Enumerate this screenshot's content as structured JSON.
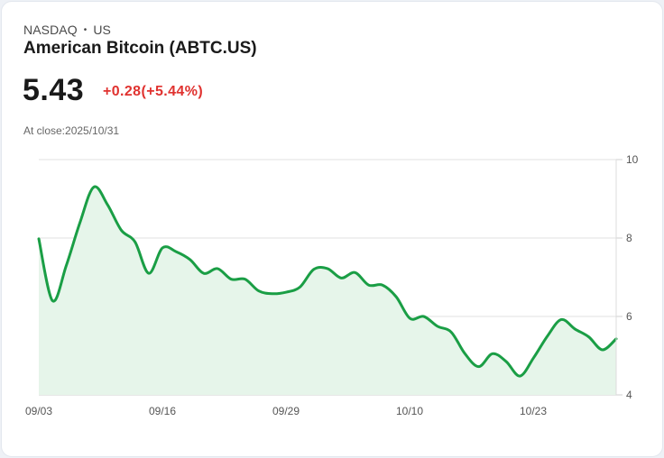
{
  "header": {
    "exchange": "NASDAQ",
    "separator": "•",
    "market": "US",
    "title": "American Bitcoin (ABTC.US)",
    "price": "5.43",
    "change": "+0.28(+5.44%)",
    "close_label": "At close:2025/10/31"
  },
  "colors": {
    "line": "#1a9e45",
    "fill": "#e6f5ea",
    "change": "#e0322f",
    "grid": "#e2e2e2"
  },
  "chart_data": {
    "type": "area",
    "title": "American Bitcoin (ABTC.US)",
    "xlabel": "",
    "ylabel": "",
    "ylim": [
      4,
      10
    ],
    "y_ticks": [
      "10",
      "8",
      "6",
      "4"
    ],
    "x_ticks": [
      "09/03",
      "09/16",
      "09/29",
      "10/10",
      "10/23"
    ],
    "grid": true,
    "y_axis_position": "right",
    "series": [
      {
        "name": "ABTC.US",
        "points": [
          {
            "x": "09/03",
            "y": 7.98
          },
          {
            "x": "09/04",
            "y": 6.4
          },
          {
            "x": "09/05",
            "y": 7.3
          },
          {
            "x": "09/08",
            "y": 8.4
          },
          {
            "x": "09/09",
            "y": 9.3
          },
          {
            "x": "09/10",
            "y": 8.85
          },
          {
            "x": "09/11",
            "y": 8.2
          },
          {
            "x": "09/12",
            "y": 7.9
          },
          {
            "x": "09/15",
            "y": 7.1
          },
          {
            "x": "09/16",
            "y": 7.75
          },
          {
            "x": "09/17",
            "y": 7.65
          },
          {
            "x": "09/18",
            "y": 7.45
          },
          {
            "x": "09/19",
            "y": 7.1
          },
          {
            "x": "09/22",
            "y": 7.22
          },
          {
            "x": "09/23",
            "y": 6.95
          },
          {
            "x": "09/24",
            "y": 6.95
          },
          {
            "x": "09/25",
            "y": 6.65
          },
          {
            "x": "09/26",
            "y": 6.58
          },
          {
            "x": "09/29",
            "y": 6.62
          },
          {
            "x": "09/30",
            "y": 6.75
          },
          {
            "x": "10/01",
            "y": 7.2
          },
          {
            "x": "10/02",
            "y": 7.22
          },
          {
            "x": "10/03",
            "y": 6.98
          },
          {
            "x": "10/06",
            "y": 7.12
          },
          {
            "x": "10/07",
            "y": 6.8
          },
          {
            "x": "10/08",
            "y": 6.8
          },
          {
            "x": "10/09",
            "y": 6.5
          },
          {
            "x": "10/10",
            "y": 5.95
          },
          {
            "x": "10/13",
            "y": 6.0
          },
          {
            "x": "10/14",
            "y": 5.75
          },
          {
            "x": "10/15",
            "y": 5.6
          },
          {
            "x": "10/16",
            "y": 5.05
          },
          {
            "x": "10/17",
            "y": 4.72
          },
          {
            "x": "10/20",
            "y": 5.05
          },
          {
            "x": "10/21",
            "y": 4.85
          },
          {
            "x": "10/22",
            "y": 4.48
          },
          {
            "x": "10/23",
            "y": 4.95
          },
          {
            "x": "10/24",
            "y": 5.5
          },
          {
            "x": "10/27",
            "y": 5.92
          },
          {
            "x": "10/28",
            "y": 5.68
          },
          {
            "x": "10/29",
            "y": 5.48
          },
          {
            "x": "10/30",
            "y": 5.15
          },
          {
            "x": "10/31",
            "y": 5.43
          }
        ]
      }
    ]
  }
}
